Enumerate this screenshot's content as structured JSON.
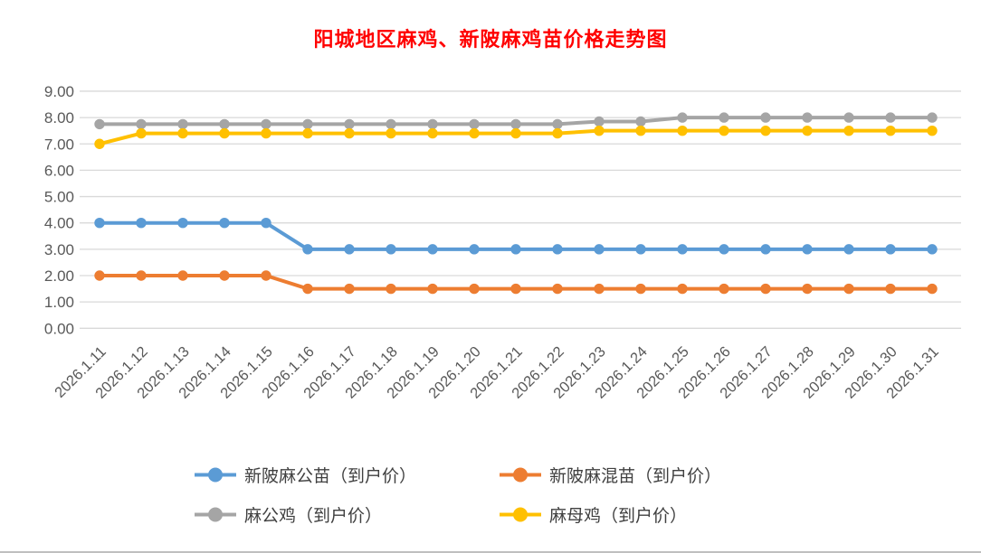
{
  "title": {
    "text": "阳城地区麻鸡、新陂麻鸡苗价格走势图",
    "color": "#FF0000"
  },
  "chart_data": {
    "type": "line",
    "title": "阳城地区麻鸡、新陂麻鸡苗价格走势图",
    "categories": [
      "2026.1.11",
      "2026.1.12",
      "2026.1.13",
      "2026.1.14",
      "2026.1.15",
      "2026.1.16",
      "2026.1.17",
      "2026.1.18",
      "2026.1.19",
      "2026.1.20",
      "2026.1.21",
      "2026.1.22",
      "2026.1.23",
      "2026.1.24",
      "2026.1.25",
      "2026.1.26",
      "2026.1.27",
      "2026.1.28",
      "2026.1.29",
      "2026.1.30",
      "2026.1.31"
    ],
    "series": [
      {
        "name": "新陂麻公苗（到户价）",
        "color": "#5B9BD5",
        "values": [
          4.0,
          4.0,
          4.0,
          4.0,
          4.0,
          3.0,
          3.0,
          3.0,
          3.0,
          3.0,
          3.0,
          3.0,
          3.0,
          3.0,
          3.0,
          3.0,
          3.0,
          3.0,
          3.0,
          3.0,
          3.0
        ]
      },
      {
        "name": "新陂麻混苗（到户价）",
        "color": "#ED7D31",
        "values": [
          2.0,
          2.0,
          2.0,
          2.0,
          2.0,
          1.5,
          1.5,
          1.5,
          1.5,
          1.5,
          1.5,
          1.5,
          1.5,
          1.5,
          1.5,
          1.5,
          1.5,
          1.5,
          1.5,
          1.5,
          1.5
        ]
      },
      {
        "name": "麻公鸡（到户价）",
        "color": "#A5A5A5",
        "values": [
          7.75,
          7.75,
          7.75,
          7.75,
          7.75,
          7.75,
          7.75,
          7.75,
          7.75,
          7.75,
          7.75,
          7.75,
          7.85,
          7.85,
          8.0,
          8.0,
          8.0,
          8.0,
          8.0,
          8.0,
          8.0
        ]
      },
      {
        "name": "麻母鸡（到户价）",
        "color": "#FFC000",
        "values": [
          7.0,
          7.4,
          7.4,
          7.4,
          7.4,
          7.4,
          7.4,
          7.4,
          7.4,
          7.4,
          7.4,
          7.4,
          7.5,
          7.5,
          7.5,
          7.5,
          7.5,
          7.5,
          7.5,
          7.5,
          7.5
        ]
      }
    ],
    "ylim": [
      0,
      9
    ],
    "ytick_labels": [
      "0.00",
      "1.00",
      "2.00",
      "3.00",
      "4.00",
      "5.00",
      "6.00",
      "7.00",
      "8.00",
      "9.00"
    ],
    "grid": true,
    "gridline_color": "#D9D9D9",
    "axis_text_color": "#595959",
    "legend_text_color": "#404040",
    "legend_position": "bottom"
  }
}
